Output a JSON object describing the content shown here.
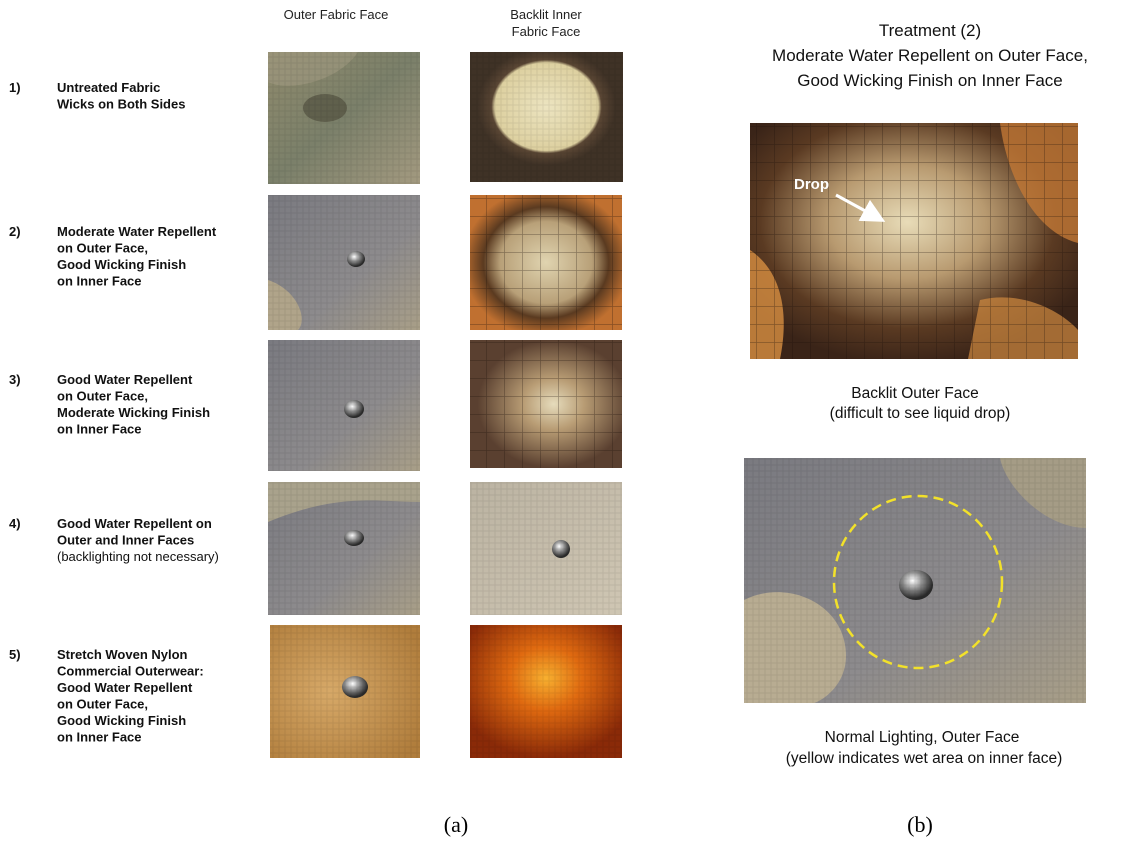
{
  "panel_a": {
    "column_headers": [
      [
        "Outer Fabric Face"
      ],
      [
        "Backlit Inner",
        "Fabric Face"
      ]
    ],
    "rows": [
      {
        "number": "1)",
        "lines": [
          "Untreated Fabric",
          "Wicks on Both Sides"
        ]
      },
      {
        "number": "2)",
        "lines": [
          "Moderate Water Repellent",
          "on Outer Face,",
          "Good Wicking Finish",
          "on Inner Face"
        ]
      },
      {
        "number": "3)",
        "lines": [
          "Good Water Repellent",
          "on Outer Face,",
          "Moderate Wicking Finish",
          "on Inner Face"
        ]
      },
      {
        "number": "4)",
        "lines": [
          "Good Water Repellent on",
          "Outer and Inner Faces"
        ],
        "note": "(backlighting not necessary)"
      },
      {
        "number": "5)",
        "lines": [
          "Stretch Woven Nylon",
          "Commercial Outerwear:",
          "Good Water Repellent",
          "on Outer Face,",
          "Good Wicking Finish",
          "on Inner Face"
        ]
      }
    ],
    "caption": "(a)"
  },
  "panel_b": {
    "title_lines": [
      "Treatment (2)",
      "Moderate Water Repellent on Outer Face,",
      "Good Wicking Finish on Inner Face"
    ],
    "image_annotation": "Drop",
    "caption_1": [
      "Backlit Outer Face",
      "(difficult to see liquid drop)"
    ],
    "caption_2": [
      "Normal Lighting, Outer Face",
      "(yellow indicates wet area on inner face)"
    ],
    "caption": "(b)"
  }
}
